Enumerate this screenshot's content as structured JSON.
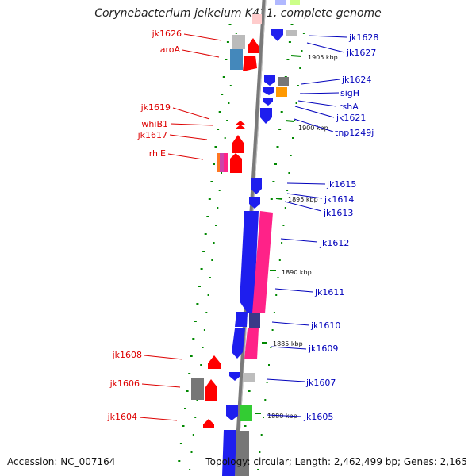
{
  "title": "Corynebacterium jeikeium K411, complete genome",
  "footer": {
    "accession": "Accession: NC_007164",
    "summary": "Topology: circular; Length: 2,462,499 bp; Genes: 2,165"
  },
  "colors": {
    "left_label": "#dd0000",
    "right_label": "#0000bb",
    "forward_gene": "#ff0000",
    "reverse_gene": "#0000ff",
    "axis": "#808080",
    "dots": "#008800"
  },
  "scale_ticks": [
    "1905 kbp",
    "1900 kbp",
    "1895 kbp",
    "1890 kbp",
    "1885 kbp",
    "1880 kbp"
  ],
  "left_genes": [
    "jk1626",
    "aroA",
    "jk1619",
    "whiB1",
    "jk1617",
    "rhlE",
    "jk1608",
    "jk1606",
    "jk1604"
  ],
  "right_genes": [
    "jk1628",
    "jk1627",
    "jk1624",
    "sigH",
    "rshA",
    "jk1621",
    "tnp1249j",
    "jk1615",
    "jk1614",
    "jk1613",
    "jk1612",
    "jk1611",
    "jk1610",
    "jk1609",
    "jk1607",
    "jk1605"
  ]
}
